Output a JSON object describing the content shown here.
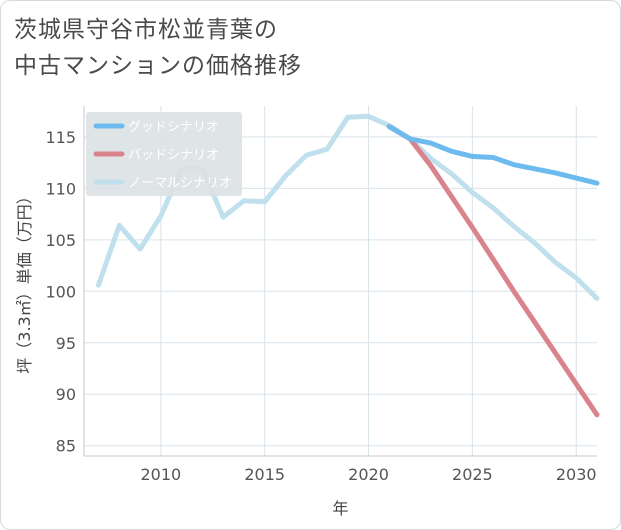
{
  "title_line1": "茨城県守谷市松並青葉の",
  "title_line2": "中古マンションの価格推移",
  "chart_data": {
    "type": "line",
    "title": "茨城県守谷市松並青葉の中古マンションの価格推移",
    "xlabel": "年",
    "ylabel": "坪（3.3㎡）単価（万円）",
    "xlim": [
      2006.3,
      2031
    ],
    "ylim": [
      84,
      118
    ],
    "xticks": [
      2010,
      2015,
      2020,
      2025,
      2030
    ],
    "yticks": [
      85,
      90,
      95,
      100,
      105,
      110,
      115
    ],
    "grid": true,
    "legend_position": "top-left",
    "series": [
      {
        "name": "グッドシナリオ",
        "color": "#6dbbee",
        "x": [
          2021,
          2022,
          2023,
          2024,
          2025,
          2026,
          2027,
          2028,
          2029,
          2030,
          2031
        ],
        "y": [
          116.0,
          114.8,
          114.4,
          113.6,
          113.1,
          113.0,
          112.3,
          111.9,
          111.5,
          111.0,
          110.5
        ]
      },
      {
        "name": "バッドシナリオ",
        "color": "#d9838d",
        "x": [
          2021,
          2022,
          2023,
          2024,
          2025,
          2026,
          2027,
          2028,
          2029,
          2030,
          2031
        ],
        "y": [
          116.0,
          114.8,
          112.2,
          109.2,
          106.2,
          103.1,
          100.0,
          97.0,
          94.0,
          91.0,
          88.0
        ]
      },
      {
        "name": "ノーマルシナリオ",
        "color": "#bfe0ec",
        "x": [
          2007,
          2008,
          2009,
          2010,
          2011,
          2012,
          2013,
          2014,
          2015,
          2016,
          2017,
          2018,
          2019,
          2020,
          2021,
          2022,
          2023,
          2024,
          2025,
          2026,
          2027,
          2028,
          2029,
          2030,
          2031
        ],
        "y": [
          100.6,
          106.4,
          104.1,
          107.3,
          111.9,
          111.9,
          107.2,
          108.8,
          108.7,
          111.2,
          113.2,
          113.8,
          116.9,
          117.0,
          116.1,
          114.8,
          112.9,
          111.4,
          109.6,
          108.1,
          106.3,
          104.7,
          102.8,
          101.3,
          99.3
        ]
      }
    ]
  }
}
